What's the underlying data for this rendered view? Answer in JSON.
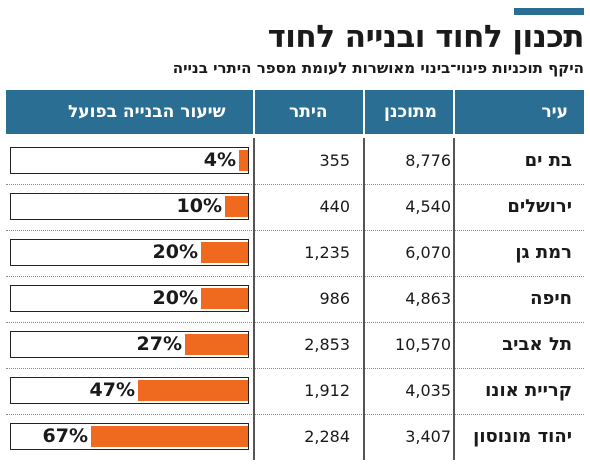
{
  "header": {
    "title": "תכנון לחוד ובנייה לחוד",
    "subtitle": "היקף תוכניות פינוי־בינוי מאושרות לעומת מספר היתרי בנייה"
  },
  "colors": {
    "accent": "#2a6e94",
    "bar": "#ef6a1f"
  },
  "chart_data": {
    "type": "table",
    "title": "תכנון לחוד ובנייה לחוד",
    "subtitle": "היקף תוכניות פינוי־בינוי מאושרות לעומת מספר היתרי בנייה",
    "columns": [
      "עיר",
      "מתוכנן",
      "היתר",
      "שיעור הבנייה בפועל"
    ],
    "rows": [
      {
        "city": "בת ים",
        "planned": "8,776",
        "permits": "355",
        "rate": 4,
        "rate_label": "4%"
      },
      {
        "city": "ירושלים",
        "planned": "4,540",
        "permits": "440",
        "rate": 10,
        "rate_label": "10%"
      },
      {
        "city": "רמת גן",
        "planned": "6,070",
        "permits": "1,235",
        "rate": 20,
        "rate_label": "20%"
      },
      {
        "city": "חיפה",
        "planned": "4,863",
        "permits": "986",
        "rate": 20,
        "rate_label": "20%"
      },
      {
        "city": "תל אביב",
        "planned": "10,570",
        "permits": "2,853",
        "rate": 27,
        "rate_label": "27%"
      },
      {
        "city": "קריית אונו",
        "planned": "4,035",
        "permits": "1,912",
        "rate": 47,
        "rate_label": "47%"
      },
      {
        "city": "יהוד מונוסון",
        "planned": "3,407",
        "permits": "2,284",
        "rate": 67,
        "rate_label": "67%"
      }
    ],
    "rate_range": [
      0,
      100
    ]
  }
}
